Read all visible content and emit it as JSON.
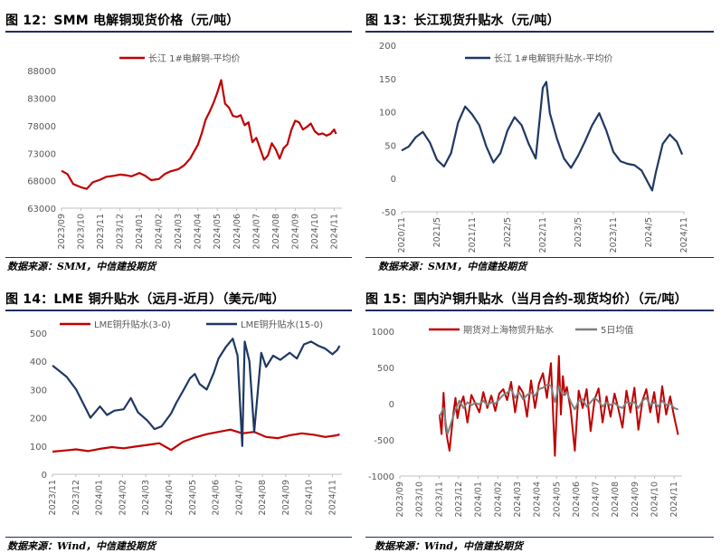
{
  "panels": [
    {
      "title": "图 12：SMM 电解铜现货价格（元/吨）",
      "source": "数据来源：SMM，中信建投期货",
      "chart_data": {
        "type": "line",
        "x_ticks": [
          "2023/09",
          "2023/10",
          "2023/11",
          "2023/12",
          "2024/01",
          "2024/02",
          "2024/03",
          "2024/04",
          "2024/05",
          "2024/06",
          "2024/07",
          "2024/08",
          "2024/09",
          "2024/10",
          "2024/11"
        ],
        "y_ticks": [
          63000,
          68000,
          73000,
          78000,
          83000,
          88000
        ],
        "ylim": [
          63000,
          90000
        ],
        "xlim": [
          0,
          14.4
        ],
        "legend_position": "top",
        "series": [
          {
            "name": "长江 1#电解铜-平均价",
            "color": "#c00000",
            "x": [
              0,
              0.3,
              0.6,
              1,
              1.3,
              1.6,
              2,
              2.3,
              2.7,
              3,
              3.3,
              3.6,
              4,
              4.3,
              4.6,
              5,
              5.3,
              5.6,
              6,
              6.3,
              6.6,
              7,
              7.2,
              7.4,
              7.6,
              7.8,
              8,
              8.2,
              8.4,
              8.6,
              8.8,
              9,
              9.2,
              9.4,
              9.6,
              9.8,
              10,
              10.2,
              10.4,
              10.6,
              10.8,
              11,
              11.2,
              11.4,
              11.6,
              11.8,
              12,
              12.2,
              12.4,
              12.6,
              12.8,
              13,
              13.2,
              13.4,
              13.6,
              13.8,
              14,
              14.1
            ],
            "y": [
              69800,
              69200,
              67400,
              66800,
              66500,
              67700,
              68200,
              68700,
              68900,
              69100,
              69000,
              68800,
              69400,
              68900,
              68100,
              68300,
              69200,
              69700,
              70100,
              70800,
              72000,
              74500,
              76600,
              79100,
              80500,
              82100,
              84000,
              86300,
              82000,
              81300,
              79800,
              79600,
              79900,
              78100,
              78600,
              75000,
              75800,
              73800,
              71800,
              72600,
              74800,
              73700,
              72000,
              73900,
              74600,
              77200,
              78900,
              78600,
              77300,
              77800,
              78400,
              77000,
              76400,
              76600,
              76200,
              76500,
              77300,
              76500
            ]
          }
        ]
      }
    },
    {
      "title": "图 13：长江现货升贴水（元/吨）",
      "source": "数据来源：SMM，中信建投期货",
      "chart_data": {
        "type": "line",
        "x_ticks": [
          "2020/11",
          "2021/5",
          "2021/11",
          "2022/5",
          "2022/11",
          "2023/5",
          "2023/11",
          "2024/5",
          "2024/11"
        ],
        "y_ticks": [
          -50,
          0,
          50,
          100,
          150,
          200
        ],
        "ylim": [
          -50,
          200
        ],
        "xlim": [
          0,
          8
        ],
        "legend_position": "top",
        "series": [
          {
            "name": "长江 1#电解铜升贴水-平均价",
            "color": "#1f3864",
            "x": [
              0,
              0.2,
              0.4,
              0.6,
              0.8,
              1,
              1.2,
              1.4,
              1.6,
              1.8,
              2,
              2.2,
              2.4,
              2.6,
              2.8,
              3,
              3.2,
              3.4,
              3.6,
              3.8,
              4,
              4.1,
              4.2,
              4.4,
              4.6,
              4.8,
              5,
              5.2,
              5.4,
              5.6,
              5.8,
              6,
              6.2,
              6.4,
              6.6,
              6.8,
              7,
              7.1,
              7.2,
              7.4,
              7.6,
              7.8,
              7.95
            ],
            "y": [
              42,
              48,
              62,
              70,
              54,
              28,
              18,
              38,
              84,
              108,
              96,
              80,
              48,
              24,
              38,
              72,
              92,
              80,
              52,
              30,
              136,
              145,
              98,
              60,
              30,
              16,
              34,
              56,
              80,
              98,
              72,
              40,
              26,
              22,
              20,
              12,
              -8,
              -18,
              8,
              52,
              66,
              55,
              36
            ]
          }
        ]
      }
    },
    {
      "title": "图 14：LME 铜升贴水（远月-近月）（美元/吨）",
      "source": "数据来源：Wind，中信建投期货",
      "chart_data": {
        "type": "line",
        "x_ticks": [
          "2023/11",
          "2023/12",
          "2024/01",
          "2024/02",
          "2024/03",
          "2024/04",
          "2024/05",
          "2024/06",
          "2024/07",
          "2024/08",
          "2024/09",
          "2024/10",
          "2024/11"
        ],
        "y_ticks": [
          0,
          100,
          200,
          300,
          400,
          500
        ],
        "ylim": [
          0,
          500
        ],
        "xlim": [
          0,
          12.2
        ],
        "legend_position": "top",
        "series": [
          {
            "name": "LME铜升贴水(3-0)",
            "color": "#c00000",
            "x": [
              0,
              0.5,
              1,
              1.5,
              2,
              2.5,
              3,
              3.5,
              4,
              4.5,
              5,
              5.5,
              6,
              6.5,
              7,
              7.5,
              8,
              8.5,
              9,
              9.5,
              10,
              10.5,
              11,
              11.5,
              12,
              12.1
            ],
            "y": [
              80,
              84,
              88,
              82,
              90,
              96,
              92,
              98,
              104,
              110,
              86,
              115,
              130,
              142,
              150,
              158,
              145,
              150,
              132,
              128,
              138,
              145,
              140,
              132,
              138,
              142
            ]
          },
          {
            "name": "LME铜升贴水(15-0)",
            "color": "#1f3864",
            "x": [
              0,
              0.3,
              0.6,
              1,
              1.3,
              1.6,
              2,
              2.3,
              2.6,
              3,
              3.3,
              3.6,
              4,
              4.3,
              4.6,
              5,
              5.2,
              5.5,
              5.8,
              6,
              6.2,
              6.5,
              6.8,
              7,
              7.3,
              7.6,
              7.8,
              8,
              8.1,
              8.3,
              8.5,
              8.8,
              9,
              9.3,
              9.6,
              10,
              10.3,
              10.6,
              10.9,
              11.2,
              11.5,
              11.8,
              12,
              12.1
            ],
            "y": [
              385,
              365,
              345,
              300,
              250,
              200,
              240,
              210,
              225,
              230,
              270,
              220,
              190,
              160,
              170,
              215,
              250,
              295,
              340,
              355,
              320,
              300,
              360,
              410,
              450,
              480,
              420,
              100,
              470,
              400,
              150,
              430,
              380,
              420,
              405,
              430,
              410,
              460,
              470,
              455,
              445,
              425,
              440,
              455
            ]
          }
        ]
      }
    },
    {
      "title": "图 15：国内沪铜升贴水（当月合约-现货均价）（元/吨）",
      "source": "数据来源：Wind，中信建投期货",
      "chart_data": {
        "type": "line",
        "x_ticks": [
          "2023/09",
          "2023/10",
          "2023/11",
          "2023/12",
          "2024/01",
          "2024/02",
          "2024/03",
          "2024/04",
          "2024/05",
          "2024/06",
          "2024/07",
          "2024/08",
          "2024/09",
          "2024/10",
          "2024/11"
        ],
        "y_ticks": [
          -1000,
          -500,
          0,
          500,
          1000
        ],
        "ylim": [
          -1000,
          1000
        ],
        "xlim": [
          0,
          14.2
        ],
        "legend_position": "top",
        "series": [
          {
            "name": "期货对上海物贸升贴水",
            "color": "#c00000",
            "x": [
              2,
              2.1,
              2.2,
              2.3,
              2.4,
              2.5,
              2.6,
              2.7,
              2.8,
              2.9,
              3,
              3.2,
              3.4,
              3.6,
              3.8,
              4,
              4.2,
              4.4,
              4.6,
              4.8,
              5,
              5.2,
              5.4,
              5.6,
              5.8,
              6,
              6.2,
              6.4,
              6.6,
              6.8,
              7,
              7.2,
              7.4,
              7.6,
              7.8,
              8,
              8.1,
              8.2,
              8.3,
              8.4,
              8.6,
              8.8,
              9,
              9.2,
              9.4,
              9.6,
              9.8,
              10,
              10.2,
              10.4,
              10.6,
              10.8,
              11,
              11.2,
              11.4,
              11.6,
              11.8,
              12,
              12.2,
              12.4,
              12.6,
              12.8,
              13,
              13.2,
              13.4,
              13.6,
              13.8,
              14
            ],
            "y": [
              -150,
              -420,
              150,
              -300,
              -500,
              -650,
              -380,
              -120,
              80,
              -200,
              -50,
              100,
              -260,
              120,
              0,
              -120,
              160,
              -60,
              110,
              -100,
              140,
              200,
              50,
              300,
              -120,
              240,
              150,
              -180,
              320,
              -60,
              280,
              420,
              80,
              560,
              -720,
              660,
              -150,
              380,
              120,
              230,
              -100,
              -650,
              180,
              -60,
              200,
              -380,
              60,
              210,
              -260,
              100,
              -180,
              140,
              -80,
              -330,
              180,
              -120,
              220,
              -360,
              40,
              200,
              -120,
              160,
              -260,
              240,
              -150,
              100,
              -180,
              -430
            ]
          },
          {
            "name": "5日均值",
            "color": "#7f7f7f",
            "x": [
              2,
              2.2,
              2.4,
              2.6,
              2.8,
              3,
              3.2,
              3.4,
              3.6,
              3.8,
              4,
              4.2,
              4.4,
              4.6,
              4.8,
              5,
              5.2,
              5.4,
              5.6,
              5.8,
              6,
              6.2,
              6.4,
              6.6,
              6.8,
              7,
              7.2,
              7.4,
              7.6,
              7.8,
              8,
              8.2,
              8.4,
              8.6,
              8.8,
              9,
              9.2,
              9.4,
              9.6,
              9.8,
              10,
              10.2,
              10.4,
              10.6,
              10.8,
              11,
              11.2,
              11.4,
              11.6,
              11.8,
              12,
              12.2,
              12.4,
              12.6,
              12.8,
              13,
              13.2,
              13.4,
              13.6,
              13.8,
              14
            ],
            "y": [
              -180,
              -60,
              -420,
              -250,
              -80,
              40,
              -60,
              20,
              -20,
              10,
              -10,
              40,
              -20,
              20,
              0,
              60,
              120,
              150,
              200,
              80,
              160,
              60,
              120,
              150,
              110,
              200,
              220,
              260,
              250,
              20,
              240,
              120,
              160,
              20,
              -80,
              40,
              60,
              -40,
              20,
              80,
              30,
              -40,
              20,
              -20,
              10,
              -40,
              -60,
              20,
              10,
              20,
              -60,
              40,
              80,
              -20,
              20,
              -40,
              40,
              -20,
              0,
              -60,
              -80
            ]
          }
        ]
      }
    }
  ]
}
